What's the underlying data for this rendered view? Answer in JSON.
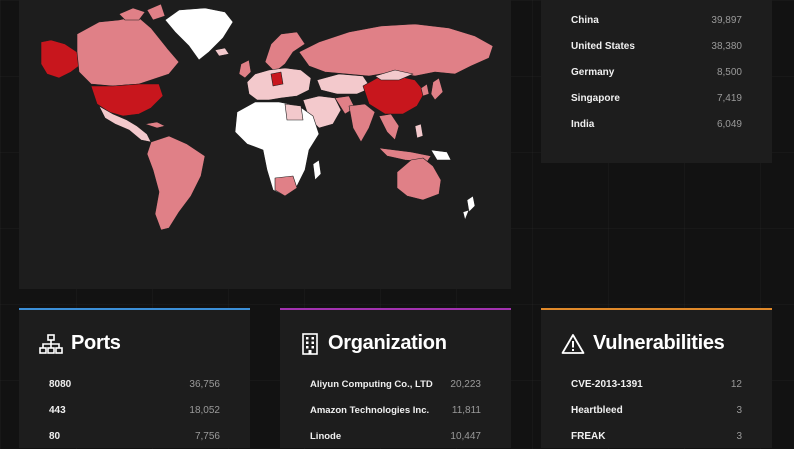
{
  "map": {
    "colors": {
      "high": "#c8161d",
      "mid": "#e08087",
      "low": "#f3c9cc",
      "none": "#ffffff",
      "ocean": "#1d1d1d"
    }
  },
  "countries": {
    "rows": [
      {
        "name": "China",
        "count": "39,897"
      },
      {
        "name": "United States",
        "count": "38,380"
      },
      {
        "name": "Germany",
        "count": "8,500"
      },
      {
        "name": "Singapore",
        "count": "7,419"
      },
      {
        "name": "India",
        "count": "6,049"
      }
    ]
  },
  "ports": {
    "title": "Ports",
    "icon": "sitemap-icon",
    "rows": [
      {
        "name": "8080",
        "count": "36,756"
      },
      {
        "name": "443",
        "count": "18,052"
      },
      {
        "name": "80",
        "count": "7,756"
      }
    ]
  },
  "organization": {
    "title": "Organization",
    "icon": "building-icon",
    "rows": [
      {
        "name": "Aliyun Computing Co., LTD",
        "count": "20,223"
      },
      {
        "name": "Amazon Technologies Inc.",
        "count": "11,811"
      },
      {
        "name": "Linode",
        "count": "10,447"
      }
    ]
  },
  "vulnerabilities": {
    "title": "Vulnerabilities",
    "icon": "warning-icon",
    "rows": [
      {
        "name": "CVE-2013-1391",
        "count": "12"
      },
      {
        "name": "Heartbleed",
        "count": "3"
      },
      {
        "name": "FREAK",
        "count": "3"
      }
    ]
  }
}
